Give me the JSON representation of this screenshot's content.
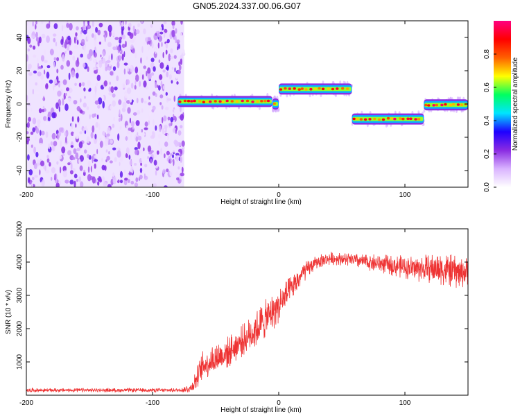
{
  "title": "GN05.2024.337.00.06.G07",
  "chart_data": [
    {
      "type": "heatmap",
      "title": "GN05.2024.337.00.06.G07",
      "xlabel": "Height of straight line (km)",
      "ylabel": "Frequency (Hz)",
      "xlim": [
        -200,
        150
      ],
      "ylim": [
        -50,
        50
      ],
      "xticks": [
        -200,
        -100,
        0,
        100
      ],
      "yticks": [
        -40,
        -20,
        0,
        20,
        40
      ],
      "colorbar": {
        "label": "Normalized spectral amplitude",
        "range": [
          0.0,
          1.0
        ],
        "ticks": [
          0.0,
          0.2,
          0.4,
          0.6,
          0.8
        ],
        "colors": [
          "#ffffff",
          "#d9b3ff",
          "#8a2be2",
          "#1e00ff",
          "#00e5ff",
          "#00ff60",
          "#ffff00",
          "#ff6000",
          "#ff0000",
          "#ff0080"
        ]
      },
      "noise_region": {
        "x_range": [
          -200,
          -75
        ],
        "frequency_range": [
          -50,
          50
        ],
        "amplitude": "low-mid (scattered)"
      },
      "segments": [
        {
          "x_start": -80,
          "x_end": -5,
          "frequency": 1.5
        },
        {
          "x_start": -5,
          "x_end": 0,
          "frequency": 0
        },
        {
          "x_start": 0,
          "x_end": 58,
          "frequency": 9
        },
        {
          "x_start": 58,
          "x_end": 115,
          "frequency": -9
        },
        {
          "x_start": 115,
          "x_end": 150,
          "frequency": -0.5
        }
      ]
    },
    {
      "type": "line",
      "xlabel": "Height of straight line (km)",
      "ylabel": "SNR (10 * v/v)",
      "xlim": [
        -200,
        150
      ],
      "ylim": [
        0,
        5000
      ],
      "xticks": [
        -200,
        -100,
        0,
        100
      ],
      "yticks": [
        1000,
        2000,
        3000,
        4000,
        5000
      ],
      "line_color": "#ee3333",
      "series": [
        {
          "x": [
            -200,
            -150,
            -100,
            -80,
            -70,
            -65,
            -60,
            -50,
            -40,
            -30,
            -20,
            -10,
            0,
            10,
            20,
            30,
            40,
            50,
            60,
            70,
            80,
            90,
            100,
            110,
            120,
            130,
            140,
            150
          ],
          "y": [
            150,
            150,
            150,
            150,
            200,
            500,
            900,
            1100,
            1300,
            1600,
            1900,
            2300,
            2700,
            3200,
            3700,
            4000,
            4100,
            4100,
            4050,
            4000,
            3950,
            3900,
            3850,
            3800,
            3800,
            3800,
            3700,
            3700
          ],
          "noise_amplitude": [
            60,
            60,
            60,
            60,
            150,
            350,
            450,
            500,
            500,
            500,
            550,
            600,
            550,
            400,
            300,
            200,
            200,
            200,
            220,
            250,
            280,
            320,
            350,
            400,
            450,
            500,
            500,
            450
          ]
        }
      ]
    }
  ]
}
